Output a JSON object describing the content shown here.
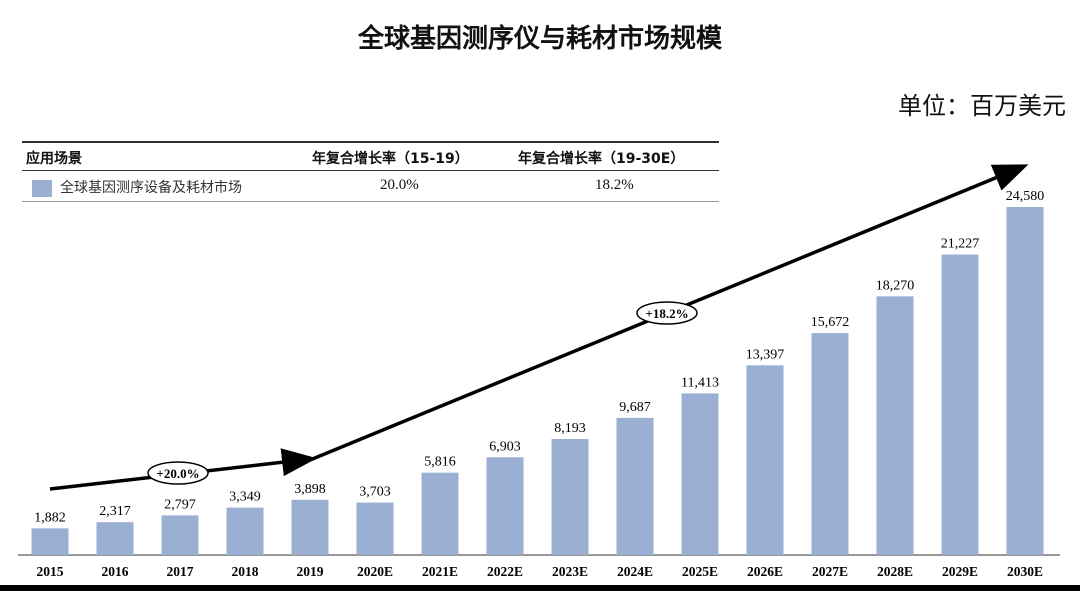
{
  "title": "全球基因测序仪与耗材市场规模",
  "unit": "单位：百万美元",
  "legend_table": {
    "headers": [
      "应用场景",
      "年复合增长率（15-19）",
      "年复合增长率（19-30E）"
    ],
    "rows": [
      {
        "label": "全球基因测序设备及耗材市场",
        "cagr_15_19": "20.0%",
        "cagr_19_30": "18.2%"
      }
    ]
  },
  "colors": {
    "bar": "#9aafd1",
    "arrow": "#000000"
  },
  "chart_data": {
    "type": "bar",
    "title": "全球基因测序仪与耗材市场规模",
    "categories": [
      "2015",
      "2016",
      "2017",
      "2018",
      "2019",
      "2020E",
      "2021E",
      "2022E",
      "2023E",
      "2024E",
      "2025E",
      "2026E",
      "2027E",
      "2028E",
      "2029E",
      "2030E"
    ],
    "values": [
      1882,
      2317,
      2797,
      3349,
      3898,
      3703,
      5816,
      6903,
      8193,
      9687,
      11413,
      13397,
      15672,
      18270,
      21227,
      24580
    ],
    "data_labels": [
      "1,882",
      "2,317",
      "2,797",
      "3,349",
      "3,898",
      "3,703",
      "5,816",
      "6,903",
      "8,193",
      "9,687",
      "11,413",
      "13,397",
      "15,672",
      "18,270",
      "21,227",
      "24,580"
    ],
    "ylim": [
      0,
      24580
    ],
    "grid": false,
    "annotations": [
      {
        "text": "+20.0%",
        "from": "2015",
        "to": "2019"
      },
      {
        "text": "+18.2%",
        "from": "2019",
        "to": "2030E"
      }
    ]
  }
}
